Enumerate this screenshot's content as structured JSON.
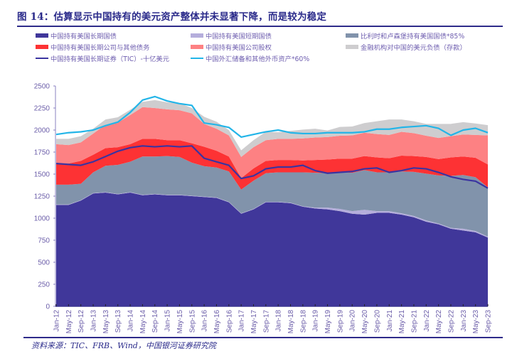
{
  "title": "图 14：估算显示中国持有的美元资产整体并未显著下降，而是较为稳定",
  "source": "资料来源：TIC、FRB、Wind，中国银河证券研究院",
  "chart_data": {
    "type": "area",
    "title": "图 14：估算显示中国持有的美元资产整体并未显著下降，而是较为稳定",
    "xlabel": "",
    "ylabel": "",
    "ylim": [
      0,
      2500
    ],
    "yticks": [
      "0",
      "250",
      "500",
      "750",
      "1000",
      "1250",
      "1500",
      "1750",
      "2000",
      "2250",
      "2500"
    ],
    "grid": false,
    "legend_position": "top",
    "x": [
      "Jan-12",
      "May-12",
      "Sep-12",
      "Jan-13",
      "May-13",
      "Sep-13",
      "Jan-14",
      "May-14",
      "Sep-14",
      "Jan-15",
      "May-15",
      "Sep-15",
      "Jan-16",
      "May-16",
      "Sep-16",
      "Jan-17",
      "May-17",
      "Sep-17",
      "Jan-18",
      "May-18",
      "Sep-18",
      "Jan-19",
      "May-19",
      "Sep-19",
      "Jan-20",
      "May-20",
      "Sep-20",
      "Jan-21",
      "May-21",
      "Sep-21",
      "Jan-22",
      "May-22",
      "Sep-22",
      "Jan-23",
      "May-23",
      "Sep-23"
    ],
    "stacked_series": [
      {
        "name": "中国持有美国长期国债",
        "color": "#40379a",
        "values": [
          1150,
          1150,
          1200,
          1280,
          1290,
          1270,
          1290,
          1260,
          1270,
          1260,
          1260,
          1250,
          1240,
          1230,
          1180,
          1050,
          1100,
          1180,
          1180,
          1170,
          1130,
          1110,
          1100,
          1080,
          1050,
          1040,
          1060,
          1060,
          1040,
          1010,
          960,
          930,
          880,
          860,
          840,
          780
        ]
      },
      {
        "name": "中国持有美国短期国债",
        "color": "#b5aedc",
        "values": [
          5,
          5,
          5,
          5,
          5,
          5,
          5,
          5,
          5,
          5,
          5,
          5,
          5,
          5,
          5,
          5,
          5,
          5,
          5,
          5,
          5,
          10,
          20,
          25,
          30,
          55,
          20,
          20,
          15,
          15,
          15,
          10,
          10,
          20,
          15,
          10
        ]
      },
      {
        "name": "比利时和卢森堡持有美国国债*85%",
        "color": "#8193ab",
        "values": [
          225,
          225,
          185,
          235,
          300,
          330,
          345,
          435,
          425,
          440,
          430,
          375,
          345,
          340,
          345,
          270,
          320,
          325,
          335,
          345,
          385,
          395,
          390,
          415,
          435,
          450,
          440,
          440,
          475,
          500,
          530,
          545,
          590,
          610,
          610,
          560
        ]
      },
      {
        "name": "中国持有美国长期公司与其他债务",
        "color": "#fd3234",
        "values": [
          240,
          240,
          260,
          200,
          200,
          200,
          200,
          200,
          200,
          180,
          190,
          220,
          220,
          190,
          170,
          130,
          140,
          140,
          140,
          140,
          135,
          145,
          155,
          155,
          160,
          160,
          170,
          160,
          180,
          180,
          190,
          185,
          210,
          210,
          220,
          260
        ]
      },
      {
        "name": "中国持有美国公司股权",
        "color": "#fd8183",
        "values": [
          220,
          210,
          210,
          240,
          265,
          280,
          330,
          360,
          350,
          350,
          340,
          340,
          260,
          250,
          240,
          240,
          240,
          235,
          240,
          240,
          250,
          255,
          255,
          260,
          265,
          265,
          265,
          265,
          270,
          260,
          240,
          240,
          240,
          250,
          260,
          330
        ]
      },
      {
        "name": "金融机构对中国的美元负债（存款）",
        "color": "#cecdcf",
        "values": [
          60,
          70,
          70,
          55,
          60,
          60,
          60,
          60,
          90,
          80,
          80,
          60,
          80,
          80,
          60,
          75,
          80,
          95,
          75,
          90,
          100,
          100,
          75,
          100,
          100,
          110,
          145,
          175,
          140,
          135,
          135,
          160,
          140,
          140,
          130,
          115
        ]
      }
    ],
    "line_series": [
      {
        "name": "中国持有美国长期证券（TIC）-十亿美元",
        "color": "#3b34a0",
        "values": [
          1620,
          1610,
          1600,
          1640,
          1700,
          1760,
          1800,
          1820,
          1810,
          1820,
          1810,
          1820,
          1680,
          1640,
          1600,
          1450,
          1480,
          1560,
          1580,
          1580,
          1600,
          1540,
          1510,
          1520,
          1530,
          1560,
          1570,
          1520,
          1540,
          1570,
          1560,
          1520,
          1470,
          1440,
          1420,
          1340
        ]
      },
      {
        "name": "中国外汇储备和其他外币资产*60%",
        "color": "#23b5e8",
        "values": [
          1950,
          1970,
          1980,
          2000,
          2050,
          2090,
          2200,
          2340,
          2380,
          2330,
          2300,
          2280,
          2080,
          2060,
          2030,
          1920,
          1950,
          1980,
          2000,
          1970,
          1960,
          1960,
          1970,
          1970,
          1970,
          1980,
          2010,
          2010,
          2030,
          2040,
          2050,
          2020,
          1940,
          2000,
          2020,
          1970
        ]
      }
    ],
    "legend": [
      {
        "label": "中国持有美国长期国债",
        "kind": "area",
        "color": "#40379a"
      },
      {
        "label": "中国持有美国短期国债",
        "kind": "area",
        "color": "#b5aedc"
      },
      {
        "label": "比利时和卢森堡持有美国国债*85%",
        "kind": "area",
        "color": "#8193ab"
      },
      {
        "label": "中国持有美国长期公司与其他债务",
        "kind": "area",
        "color": "#fd3234"
      },
      {
        "label": "中国持有美国公司股权",
        "kind": "area",
        "color": "#fd8183"
      },
      {
        "label": "金融机构对中国的美元负债（存款）",
        "kind": "area",
        "color": "#cecdcf"
      },
      {
        "label": "中国持有美国长期证券（TIC）-十亿美元",
        "kind": "line",
        "color": "#3b34a0"
      },
      {
        "label": "中国外汇储备和其他外币资产*60%",
        "kind": "line",
        "color": "#23b5e8"
      }
    ]
  }
}
